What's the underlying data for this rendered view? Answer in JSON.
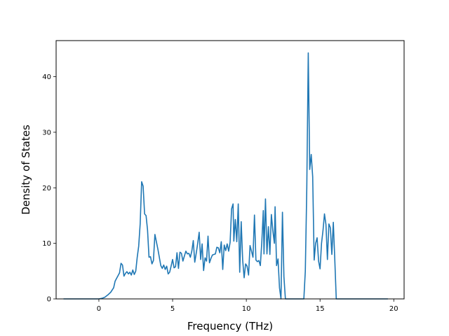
{
  "chart_data": {
    "type": "line",
    "title": "",
    "xlabel": "Frequency (THz)",
    "ylabel": "Density of States",
    "xlim": [
      -2.9,
      20.7
    ],
    "ylim": [
      0,
      46.5
    ],
    "xticks": [
      0,
      5,
      10,
      15,
      20
    ],
    "yticks": [
      0,
      10,
      20,
      30,
      40
    ],
    "grid": false,
    "legend": "none",
    "series": [
      {
        "color": "#1f77b4",
        "points": [
          [
            -2.4,
            0.0
          ],
          [
            0.0,
            0.0
          ],
          [
            0.2,
            0.1
          ],
          [
            0.4,
            0.3
          ],
          [
            0.6,
            0.7
          ],
          [
            0.8,
            1.2
          ],
          [
            1.0,
            2.0
          ],
          [
            1.1,
            3.2
          ],
          [
            1.2,
            3.7
          ],
          [
            1.3,
            4.2
          ],
          [
            1.4,
            4.7
          ],
          [
            1.5,
            6.4
          ],
          [
            1.6,
            6.1
          ],
          [
            1.7,
            4.1
          ],
          [
            1.8,
            4.6
          ],
          [
            1.9,
            4.9
          ],
          [
            2.0,
            4.5
          ],
          [
            2.1,
            4.8
          ],
          [
            2.2,
            4.3
          ],
          [
            2.3,
            5.2
          ],
          [
            2.4,
            4.4
          ],
          [
            2.5,
            5.0
          ],
          [
            2.6,
            7.5
          ],
          [
            2.7,
            9.5
          ],
          [
            2.8,
            13.5
          ],
          [
            2.9,
            21.1
          ],
          [
            3.0,
            20.3
          ],
          [
            3.1,
            15.3
          ],
          [
            3.2,
            15.0
          ],
          [
            3.3,
            12.4
          ],
          [
            3.4,
            7.5
          ],
          [
            3.5,
            7.6
          ],
          [
            3.6,
            6.3
          ],
          [
            3.7,
            6.9
          ],
          [
            3.8,
            11.6
          ],
          [
            3.9,
            10.3
          ],
          [
            4.0,
            9.0
          ],
          [
            4.1,
            7.5
          ],
          [
            4.2,
            6.0
          ],
          [
            4.3,
            5.5
          ],
          [
            4.4,
            6.1
          ],
          [
            4.5,
            5.3
          ],
          [
            4.6,
            5.9
          ],
          [
            4.7,
            4.5
          ],
          [
            4.8,
            4.8
          ],
          [
            4.9,
            5.9
          ],
          [
            5.0,
            7.1
          ],
          [
            5.1,
            5.6
          ],
          [
            5.2,
            5.8
          ],
          [
            5.3,
            8.3
          ],
          [
            5.4,
            5.5
          ],
          [
            5.5,
            8.4
          ],
          [
            5.6,
            8.2
          ],
          [
            5.7,
            6.8
          ],
          [
            5.8,
            7.7
          ],
          [
            5.9,
            8.6
          ],
          [
            6.0,
            8.1
          ],
          [
            6.1,
            8.2
          ],
          [
            6.2,
            7.5
          ],
          [
            6.3,
            8.6
          ],
          [
            6.4,
            10.5
          ],
          [
            6.5,
            6.6
          ],
          [
            6.6,
            8.2
          ],
          [
            6.7,
            10.0
          ],
          [
            6.8,
            12.0
          ],
          [
            6.9,
            7.1
          ],
          [
            7.0,
            9.9
          ],
          [
            7.1,
            5.1
          ],
          [
            7.2,
            7.4
          ],
          [
            7.3,
            6.8
          ],
          [
            7.4,
            11.3
          ],
          [
            7.5,
            6.5
          ],
          [
            7.6,
            7.3
          ],
          [
            7.7,
            7.9
          ],
          [
            7.8,
            8.0
          ],
          [
            7.9,
            8.1
          ],
          [
            8.0,
            9.3
          ],
          [
            8.1,
            9.2
          ],
          [
            8.2,
            8.3
          ],
          [
            8.3,
            10.3
          ],
          [
            8.4,
            5.3
          ],
          [
            8.5,
            9.7
          ],
          [
            8.6,
            8.7
          ],
          [
            8.7,
            9.9
          ],
          [
            8.8,
            8.6
          ],
          [
            8.9,
            10.2
          ],
          [
            9.0,
            16.2
          ],
          [
            9.1,
            17.1
          ],
          [
            9.15,
            10.4
          ],
          [
            9.25,
            14.3
          ],
          [
            9.35,
            10.3
          ],
          [
            9.45,
            17.1
          ],
          [
            9.55,
            4.8
          ],
          [
            9.65,
            13.9
          ],
          [
            9.75,
            7.0
          ],
          [
            9.85,
            3.8
          ],
          [
            9.95,
            6.3
          ],
          [
            10.05,
            5.9
          ],
          [
            10.15,
            4.3
          ],
          [
            10.25,
            9.6
          ],
          [
            10.35,
            8.6
          ],
          [
            10.45,
            7.5
          ],
          [
            10.55,
            15.1
          ],
          [
            10.65,
            7.0
          ],
          [
            10.75,
            6.7
          ],
          [
            10.85,
            6.9
          ],
          [
            10.95,
            6.0
          ],
          [
            11.05,
            10.3
          ],
          [
            11.15,
            15.9
          ],
          [
            11.2,
            8.1
          ],
          [
            11.3,
            18.0
          ],
          [
            11.4,
            8.1
          ],
          [
            11.5,
            13.0
          ],
          [
            11.6,
            8.0
          ],
          [
            11.7,
            15.2
          ],
          [
            11.8,
            12.3
          ],
          [
            11.9,
            10.0
          ],
          [
            11.95,
            16.6
          ],
          [
            12.05,
            6.0
          ],
          [
            12.15,
            7.2
          ],
          [
            12.25,
            2.0
          ],
          [
            12.35,
            0.0
          ],
          [
            12.45,
            15.6
          ],
          [
            12.55,
            4.0
          ],
          [
            12.65,
            0.0
          ],
          [
            12.75,
            0.0
          ],
          [
            13.9,
            0.0
          ],
          [
            14.0,
            5.0
          ],
          [
            14.1,
            20.0
          ],
          [
            14.2,
            44.3
          ],
          [
            14.3,
            23.3
          ],
          [
            14.4,
            26.0
          ],
          [
            14.5,
            22.0
          ],
          [
            14.6,
            7.0
          ],
          [
            14.7,
            10.0
          ],
          [
            14.8,
            11.0
          ],
          [
            14.9,
            6.8
          ],
          [
            15.0,
            5.4
          ],
          [
            15.1,
            10.0
          ],
          [
            15.2,
            12.3
          ],
          [
            15.3,
            15.3
          ],
          [
            15.4,
            13.4
          ],
          [
            15.5,
            7.1
          ],
          [
            15.6,
            13.5
          ],
          [
            15.7,
            12.8
          ],
          [
            15.8,
            8.0
          ],
          [
            15.9,
            13.8
          ],
          [
            16.0,
            7.1
          ],
          [
            16.1,
            0.0
          ],
          [
            17.4,
            0.0
          ],
          [
            19.6,
            0.0
          ]
        ]
      }
    ]
  }
}
